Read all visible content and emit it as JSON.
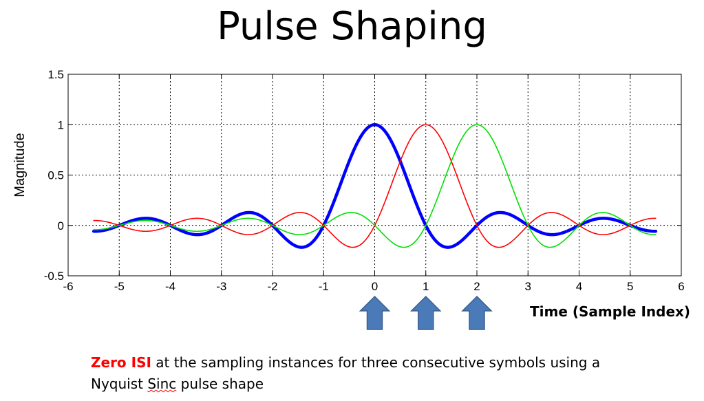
{
  "slide": {
    "title": "Pulse Shaping",
    "xlabel": "Time (Sample Index)",
    "caption_highlight": "Zero ISI",
    "caption_part1": " at the sampling instances for three consecutive symbols using a",
    "caption_part2a": "Nyquist ",
    "caption_sinc": "Sinc",
    "caption_part2b": " pulse shape"
  },
  "arrows": {
    "positions": [
      0,
      1,
      2
    ],
    "color": "#4a7ab8",
    "icon": "up-arrow-icon"
  },
  "chart_data": {
    "type": "line",
    "title": "",
    "xlabel": "Time (Sample Index)",
    "ylabel": "Magnitude",
    "xlim": [
      -6,
      6
    ],
    "ylim": [
      -0.5,
      1.5
    ],
    "xticks": [
      -6,
      -5,
      -4,
      -3,
      -2,
      -1,
      0,
      1,
      2,
      3,
      4,
      5,
      6
    ],
    "yticks": [
      -0.5,
      0,
      0.5,
      1,
      1.5
    ],
    "xtick_labels": [
      "-6",
      "-5",
      "-4",
      "-3",
      "-2",
      "-1",
      "0",
      "1",
      "2",
      "3",
      "4",
      "5",
      "6"
    ],
    "ytick_labels": [
      "-0.5",
      "0",
      "0.5",
      "1",
      "1.5"
    ],
    "grid": true,
    "x_range": [
      -5.5,
      5.5
    ],
    "series": [
      {
        "pulse": "sinc",
        "center": 0,
        "color": "#0000ff",
        "width": "thick",
        "x": [
          -5.5,
          -4.5,
          -3.5,
          -2.5,
          -1.5,
          -1.0,
          -0.5,
          0,
          0.5,
          1.0,
          1.5,
          2.5,
          3.5,
          4.5,
          5.5
        ],
        "y": [
          -0.06,
          0.07,
          -0.09,
          0.13,
          -0.21,
          0,
          0.64,
          1.0,
          0.64,
          0,
          -0.21,
          0.13,
          -0.09,
          0.07,
          -0.06
        ]
      },
      {
        "pulse": "sinc",
        "center": 1,
        "color": "#ff0000",
        "width": "thin",
        "x": [
          -5.5,
          -4.5,
          -3.5,
          -2.5,
          -1.5,
          -0.5,
          0,
          0.5,
          1.0,
          1.5,
          2.0,
          2.5,
          3.5,
          4.5,
          5.5
        ],
        "y": [
          0.05,
          -0.06,
          0.07,
          -0.09,
          0.13,
          -0.21,
          0,
          0.64,
          1.0,
          0.64,
          0,
          -0.21,
          0.13,
          -0.09,
          0.07
        ]
      },
      {
        "pulse": "sinc",
        "center": 2,
        "color": "#00e000",
        "width": "thin",
        "x": [
          -5.5,
          -4.5,
          -3.5,
          -2.5,
          -1.5,
          -0.5,
          0.5,
          1.0,
          1.5,
          2.0,
          2.5,
          3.0,
          3.5,
          4.5,
          5.5
        ],
        "y": [
          -0.04,
          0.05,
          -0.06,
          0.07,
          -0.09,
          0.13,
          -0.21,
          0,
          0.64,
          1.0,
          0.64,
          0,
          -0.21,
          0.13,
          -0.09
        ]
      }
    ]
  }
}
